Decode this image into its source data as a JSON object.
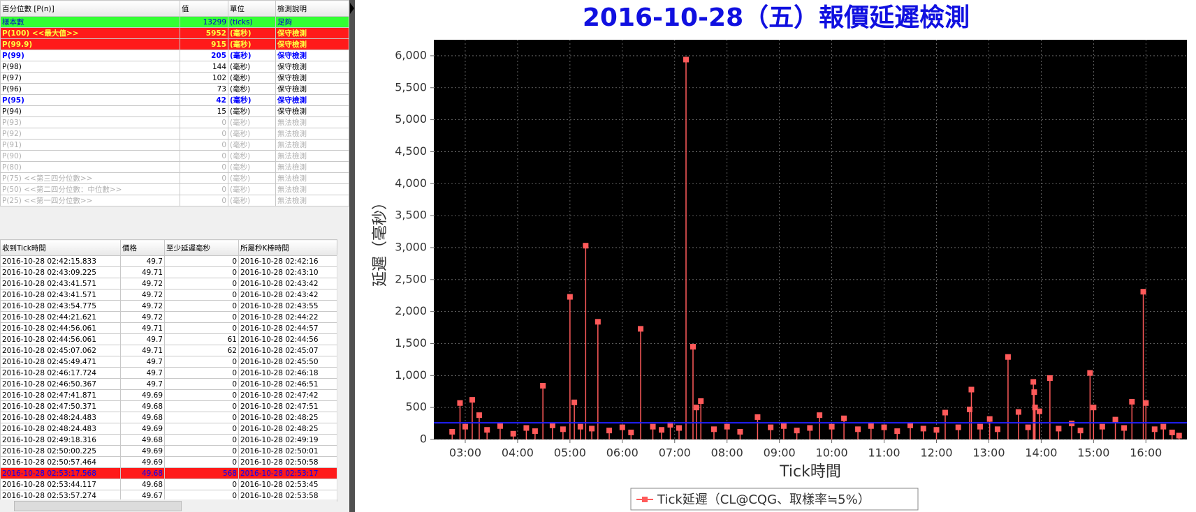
{
  "stats_table": {
    "header": [
      "百分位數 [P(n)]",
      "值",
      "單位",
      "檢測說明"
    ],
    "rows": [
      [
        "樣本數",
        13299,
        "(ticks)",
        "足夠"
      ],
      [
        "P(100)  <<最大值>>",
        5952,
        "(毫秒)",
        "保守檢測"
      ],
      [
        "P(99.9)",
        915,
        "(毫秒)",
        "保守檢測"
      ],
      [
        "P(99)",
        205,
        "(毫秒)",
        "保守檢測"
      ],
      [
        "P(98)",
        144,
        "(毫秒)",
        "保守檢測"
      ],
      [
        "P(97)",
        102,
        "(毫秒)",
        "保守檢測"
      ],
      [
        "P(96)",
        73,
        "(毫秒)",
        "保守檢測"
      ],
      [
        "P(95)",
        42,
        "(毫秒)",
        "保守檢測"
      ],
      [
        "P(94)",
        15,
        "(毫秒)",
        "保守檢測"
      ],
      [
        "P(93)",
        0,
        "(毫秒)",
        "無法檢測"
      ],
      [
        "P(92)",
        0,
        "(毫秒)",
        "無法檢測"
      ],
      [
        "P(91)",
        0,
        "(毫秒)",
        "無法檢測"
      ],
      [
        "P(90)",
        0,
        "(毫秒)",
        "無法檢測"
      ],
      [
        "P(80)",
        0,
        "(毫秒)",
        "無法檢測"
      ],
      [
        "P(75)  <<第三四分位數>>",
        0,
        "(毫秒)",
        "無法檢測"
      ],
      [
        "P(50)  <<第二四分位數：中位數>>",
        0,
        "(毫秒)",
        "無法檢測"
      ],
      [
        "P(25)  <<第一四分位數>>",
        0,
        "(毫秒)",
        "無法檢測"
      ]
    ]
  },
  "tick_table": {
    "header": [
      "收到Tick時間",
      "價格",
      "至少延遲毫秒",
      "所屬秒K棒時間"
    ],
    "rows": [
      [
        "2016-10-28 02:42:15.833",
        49.7,
        0,
        "2016-10-28 02:42:16"
      ],
      [
        "2016-10-28 02:43:09.225",
        49.71,
        0,
        "2016-10-28 02:43:10"
      ],
      [
        "2016-10-28 02:43:41.571",
        49.72,
        0,
        "2016-10-28 02:43:42"
      ],
      [
        "2016-10-28 02:43:41.571",
        49.72,
        0,
        "2016-10-28 02:43:42"
      ],
      [
        "2016-10-28 02:43:54.775",
        49.72,
        0,
        "2016-10-28 02:43:55"
      ],
      [
        "2016-10-28 02:44:21.621",
        49.72,
        0,
        "2016-10-28 02:44:22"
      ],
      [
        "2016-10-28 02:44:56.061",
        49.71,
        0,
        "2016-10-28 02:44:57"
      ],
      [
        "2016-10-28 02:44:56.061",
        49.7,
        61,
        "2016-10-28 02:44:56"
      ],
      [
        "2016-10-28 02:45:07.062",
        49.71,
        62,
        "2016-10-28 02:45:07"
      ],
      [
        "2016-10-28 02:45:49.471",
        49.7,
        0,
        "2016-10-28 02:45:50"
      ],
      [
        "2016-10-28 02:46:17.724",
        49.7,
        0,
        "2016-10-28 02:46:18"
      ],
      [
        "2016-10-28 02:46:50.367",
        49.7,
        0,
        "2016-10-28 02:46:51"
      ],
      [
        "2016-10-28 02:47:41.871",
        49.69,
        0,
        "2016-10-28 02:47:42"
      ],
      [
        "2016-10-28 02:47:50.371",
        49.68,
        0,
        "2016-10-28 02:47:51"
      ],
      [
        "2016-10-28 02:48:24.483",
        49.68,
        0,
        "2016-10-28 02:48:25"
      ],
      [
        "2016-10-28 02:48:24.483",
        49.69,
        0,
        "2016-10-28 02:48:25"
      ],
      [
        "2016-10-28 02:49:18.316",
        49.68,
        0,
        "2016-10-28 02:49:19"
      ],
      [
        "2016-10-28 02:50:00.225",
        49.69,
        0,
        "2016-10-28 02:50:01"
      ],
      [
        "2016-10-28 02:50:57.464",
        49.69,
        0,
        "2016-10-28 02:50:58"
      ],
      [
        "2016-10-28 02:53:17.568",
        49.68,
        568,
        "2016-10-28 02:53:17"
      ],
      [
        "2016-10-28 02:53:44.117",
        49.68,
        0,
        "2016-10-28 02:53:45"
      ],
      [
        "2016-10-28 02:53:57.274",
        49.67,
        0,
        "2016-10-28 02:53:58"
      ]
    ]
  },
  "chart_data": {
    "type": "stem",
    "title": "2016-10-28（五）報價延遲檢測",
    "x_label": "Tick時間",
    "y_label": "延遲（毫秒）",
    "grid": true,
    "xlim": [
      "02:24",
      "16:47"
    ],
    "xticks": [
      "03:00",
      "04:00",
      "05:00",
      "06:00",
      "07:00",
      "08:00",
      "09:00",
      "10:00",
      "11:00",
      "12:00",
      "13:00",
      "14:00",
      "15:00",
      "16:00"
    ],
    "ylim": [
      0,
      6250
    ],
    "yticks": [
      0,
      500,
      {
        "value": 1000,
        "label": "1,000"
      },
      {
        "value": 1500,
        "label": "1,500"
      },
      {
        "value": 2000,
        "label": "2,000"
      },
      {
        "value": 2500,
        "label": "2,500"
      },
      {
        "value": 3000,
        "label": "3,000"
      },
      {
        "value": 3500,
        "label": "3,500"
      },
      {
        "value": 4000,
        "label": "4,000"
      },
      {
        "value": 4500,
        "label": "4,500"
      },
      {
        "value": 5000,
        "label": "5,000"
      },
      {
        "value": 5500,
        "label": "5,500"
      },
      {
        "value": 6000,
        "label": "6,000"
      }
    ],
    "reference_line": 260,
    "reference_color": "#2020ff",
    "series": [
      {
        "name": "Tick延遲（CL@CQG、取樣率≒5%）",
        "color": "#ff5a5a",
        "x": [
          "02:45",
          "02:54",
          "03:00",
          "03:08",
          "03:16",
          "03:25",
          "03:40",
          "03:55",
          "04:10",
          "04:20",
          "04:29",
          "04:40",
          "04:52",
          "05:00",
          "05:05",
          "05:12",
          "05:18",
          "05:25",
          "05:32",
          "05:45",
          "06:00",
          "06:10",
          "06:21",
          "06:35",
          "06:45",
          "06:55",
          "07:05",
          "07:13",
          "07:21",
          "07:25",
          "07:30",
          "07:45",
          "08:00",
          "08:15",
          "08:35",
          "08:50",
          "09:05",
          "09:20",
          "09:35",
          "09:46",
          "10:00",
          "10:14",
          "10:30",
          "10:45",
          "11:00",
          "11:15",
          "11:30",
          "11:45",
          "12:00",
          "12:10",
          "12:25",
          "12:38",
          "12:40",
          "12:50",
          "13:01",
          "13:10",
          "13:22",
          "13:34",
          "13:45",
          "13:51",
          "13:52",
          "13:53",
          "13:58",
          "14:10",
          "14:20",
          "14:35",
          "14:45",
          "14:56",
          "15:00",
          "15:10",
          "15:25",
          "15:35",
          "15:44",
          "15:57",
          "16:00",
          "16:10",
          "16:20",
          "16:30",
          "16:38"
        ],
        "values": [
          120,
          570,
          200,
          620,
          380,
          150,
          210,
          90,
          180,
          130,
          840,
          220,
          160,
          2230,
          580,
          200,
          3030,
          170,
          1840,
          140,
          190,
          110,
          1730,
          200,
          150,
          230,
          180,
          5940,
          1450,
          500,
          600,
          160,
          200,
          120,
          350,
          190,
          210,
          140,
          180,
          380,
          200,
          330,
          160,
          210,
          190,
          130,
          220,
          170,
          150,
          420,
          190,
          470,
          780,
          200,
          320,
          160,
          1290,
          430,
          190,
          900,
          740,
          500,
          440,
          960,
          170,
          250,
          140,
          1040,
          500,
          200,
          310,
          180,
          590,
          2310,
          570,
          160,
          200,
          110,
          60
        ]
      }
    ]
  }
}
